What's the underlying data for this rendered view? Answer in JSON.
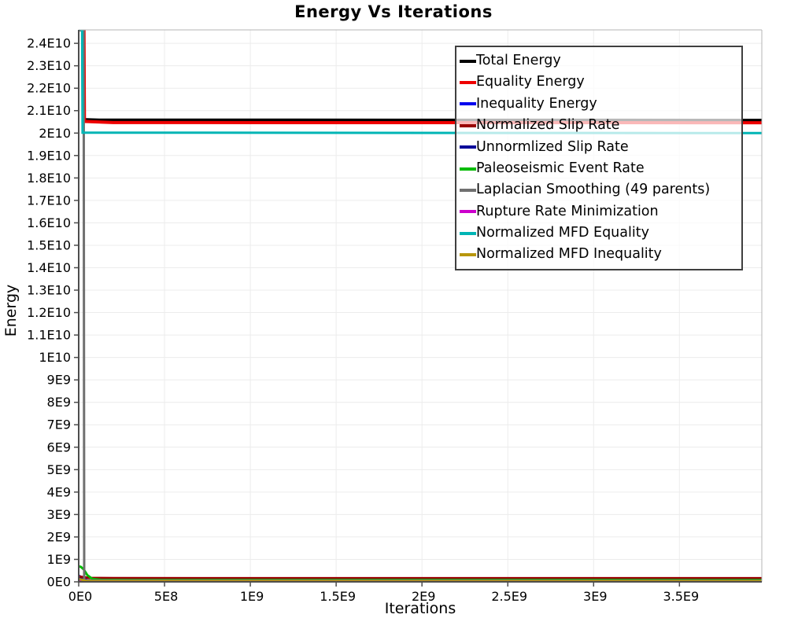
{
  "chart_data": {
    "type": "line",
    "title": "Energy Vs Iterations",
    "xlabel": "Iterations",
    "ylabel": "Energy",
    "xlim": [
      0,
      3980000000.0
    ],
    "ylim": [
      0,
      24600000000.0
    ],
    "grid": true,
    "legend_position": "top-right",
    "x_ticks": [
      {
        "v": 0,
        "label": "0E0"
      },
      {
        "v": 500000000.0,
        "label": "5E8"
      },
      {
        "v": 1000000000.0,
        "label": "1E9"
      },
      {
        "v": 1500000000.0,
        "label": "1.5E9"
      },
      {
        "v": 2000000000.0,
        "label": "2E9"
      },
      {
        "v": 2500000000.0,
        "label": "2.5E9"
      },
      {
        "v": 3000000000.0,
        "label": "3E9"
      },
      {
        "v": 3500000000.0,
        "label": "3.5E9"
      }
    ],
    "y_ticks": [
      {
        "v": 0,
        "label": "0E0"
      },
      {
        "v": 1000000000.0,
        "label": "1E9"
      },
      {
        "v": 2000000000.0,
        "label": "2E9"
      },
      {
        "v": 3000000000.0,
        "label": "3E9"
      },
      {
        "v": 4000000000.0,
        "label": "4E9"
      },
      {
        "v": 5000000000.0,
        "label": "5E9"
      },
      {
        "v": 6000000000.0,
        "label": "6E9"
      },
      {
        "v": 7000000000.0,
        "label": "7E9"
      },
      {
        "v": 8000000000.0,
        "label": "8E9"
      },
      {
        "v": 9000000000.0,
        "label": "9E9"
      },
      {
        "v": 10000000000.0,
        "label": "1E10"
      },
      {
        "v": 11000000000.0,
        "label": "1.1E10"
      },
      {
        "v": 12000000000.0,
        "label": "1.2E10"
      },
      {
        "v": 13000000000.0,
        "label": "1.3E10"
      },
      {
        "v": 14000000000.0,
        "label": "1.4E10"
      },
      {
        "v": 15000000000.0,
        "label": "1.5E10"
      },
      {
        "v": 16000000000.0,
        "label": "1.6E10"
      },
      {
        "v": 17000000000.0,
        "label": "1.7E10"
      },
      {
        "v": 18000000000.0,
        "label": "1.8E10"
      },
      {
        "v": 19000000000.0,
        "label": "1.9E10"
      },
      {
        "v": 20000000000.0,
        "label": "2E10"
      },
      {
        "v": 21000000000.0,
        "label": "2.1E10"
      },
      {
        "v": 22000000000.0,
        "label": "2.2E10"
      },
      {
        "v": 23000000000.0,
        "label": "2.3E10"
      },
      {
        "v": 24000000000.0,
        "label": "2.4E10"
      }
    ],
    "series": [
      {
        "name": "Total Energy",
        "color": "#000000",
        "width": 4,
        "points": [
          [
            0,
            24600000000.0
          ],
          [
            24500000.0,
            24600000000.0
          ],
          [
            27500000.0,
            20600000000.0
          ],
          [
            120000000.0,
            20580000000.0
          ],
          [
            3980000000.0,
            20570000000.0
          ]
        ]
      },
      {
        "name": "Equality Energy",
        "color": "#ee0000",
        "width": 4,
        "points": [
          [
            0,
            24600000000.0
          ],
          [
            30500000.0,
            24600000000.0
          ],
          [
            33500000.0,
            20520000000.0
          ],
          [
            200000000.0,
            20470000000.0
          ],
          [
            3980000000.0,
            20460000000.0
          ]
        ]
      },
      {
        "name": "Inequality Energy",
        "color": "#0000ee",
        "width": 3,
        "points": [
          [
            0,
            280000000.0
          ],
          [
            25000000.0,
            150000000.0
          ],
          [
            60000000.0,
            35000000.0
          ],
          [
            3980000000.0,
            30000000.0
          ]
        ]
      },
      {
        "name": "Normalized Slip Rate",
        "color": "#990000",
        "width": 3,
        "points": [
          [
            0,
            240000000.0
          ],
          [
            60000000.0,
            175000000.0
          ],
          [
            200000000.0,
            165000000.0
          ],
          [
            3980000000.0,
            160000000.0
          ]
        ]
      },
      {
        "name": "Unnormlized Slip Rate",
        "color": "#000099",
        "width": 3,
        "points": [
          [
            0,
            160000000.0
          ],
          [
            40000000.0,
            25000000.0
          ],
          [
            3980000000.0,
            18000000.0
          ]
        ]
      },
      {
        "name": "Paleoseismic Event Rate",
        "color": "#00bb00",
        "width": 3,
        "points": [
          [
            0,
            690000000.0
          ],
          [
            12000000.0,
            670000000.0
          ],
          [
            30000000.0,
            550000000.0
          ],
          [
            50000000.0,
            300000000.0
          ],
          [
            80000000.0,
            130000000.0
          ],
          [
            130000000.0,
            90000000.0
          ],
          [
            300000000.0,
            85000000.0
          ],
          [
            3980000000.0,
            80000000.0
          ]
        ]
      },
      {
        "name": "Laplacian Smoothing (49 parents)",
        "color": "#707070",
        "width": 3,
        "points": [
          [
            0,
            24600000000.0
          ],
          [
            29000000.0,
            24600000000.0
          ],
          [
            32000000.0,
            60000000.0
          ],
          [
            3980000000.0,
            45000000.0
          ]
        ]
      },
      {
        "name": "Rupture Rate Minimization",
        "color": "#cc00cc",
        "width": 3,
        "points": [
          [
            0,
            100000000.0
          ],
          [
            40000000.0,
            8000000.0
          ],
          [
            3980000000.0,
            7000000.0
          ]
        ]
      },
      {
        "name": "Normalized MFD Equality",
        "color": "#00b5b5",
        "width": 3,
        "points": [
          [
            0,
            24600000000.0
          ],
          [
            19500000.0,
            24600000000.0
          ],
          [
            22500000.0,
            20020000000.0
          ],
          [
            3980000000.0,
            20000000000.0
          ]
        ]
      },
      {
        "name": "Normalized MFD Inequality",
        "color": "#b8960c",
        "width": 3,
        "points": [
          [
            0,
            130000000.0
          ],
          [
            50000000.0,
            30000000.0
          ],
          [
            3980000000.0,
            26000000.0
          ]
        ]
      }
    ]
  },
  "style": {
    "axis_color": "#4d4d4d",
    "outline_color": "#b5b5b5",
    "grid_color": "#ececec",
    "tick_label_color": "#000000"
  }
}
